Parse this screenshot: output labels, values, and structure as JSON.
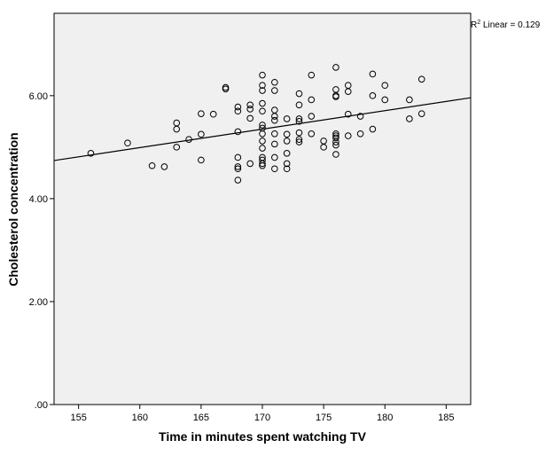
{
  "colors": {
    "plot_background": "#f0f0f0",
    "points": "#000000",
    "fit_line": "#000000",
    "axes": "#000000"
  },
  "chart_data": {
    "type": "scatter",
    "xlabel": "Time in minutes spent watching TV",
    "ylabel": "Cholesterol concentration",
    "xlim": [
      153,
      187
    ],
    "ylim": [
      0,
      7.6
    ],
    "x_ticks": [
      155,
      160,
      165,
      170,
      175,
      180,
      185
    ],
    "x_tick_labels": [
      "155",
      "160",
      "165",
      "170",
      "175",
      "180",
      "185"
    ],
    "y_ticks": [
      0,
      2,
      4,
      6
    ],
    "y_tick_labels": [
      ".00",
      "2.00",
      "4.00",
      "6.00"
    ],
    "grid": false,
    "legend": "none",
    "annotation": {
      "r2_prefix": "R",
      "r2_superscript": "2",
      "r2_text": " Linear = 0.129"
    },
    "fit_line": {
      "x": [
        153,
        187
      ],
      "y": [
        4.74,
        5.96
      ]
    },
    "points": [
      {
        "x": 156,
        "y": 4.88
      },
      {
        "x": 159,
        "y": 5.08
      },
      {
        "x": 161,
        "y": 4.64
      },
      {
        "x": 162,
        "y": 4.62
      },
      {
        "x": 163,
        "y": 5.47
      },
      {
        "x": 163,
        "y": 5.35
      },
      {
        "x": 163,
        "y": 5.0
      },
      {
        "x": 164,
        "y": 5.15
      },
      {
        "x": 165,
        "y": 5.65
      },
      {
        "x": 165,
        "y": 5.25
      },
      {
        "x": 165,
        "y": 4.75
      },
      {
        "x": 166,
        "y": 5.64
      },
      {
        "x": 167,
        "y": 6.16
      },
      {
        "x": 167,
        "y": 6.13
      },
      {
        "x": 168,
        "y": 5.78
      },
      {
        "x": 168,
        "y": 5.7
      },
      {
        "x": 168,
        "y": 5.3
      },
      {
        "x": 168,
        "y": 4.8
      },
      {
        "x": 168,
        "y": 4.62
      },
      {
        "x": 168,
        "y": 4.58
      },
      {
        "x": 168,
        "y": 4.36
      },
      {
        "x": 169,
        "y": 5.82
      },
      {
        "x": 169,
        "y": 5.74
      },
      {
        "x": 169,
        "y": 5.56
      },
      {
        "x": 169,
        "y": 4.68
      },
      {
        "x": 170,
        "y": 6.4
      },
      {
        "x": 170,
        "y": 6.2
      },
      {
        "x": 170,
        "y": 6.1
      },
      {
        "x": 170,
        "y": 5.85
      },
      {
        "x": 170,
        "y": 5.7
      },
      {
        "x": 170,
        "y": 5.43
      },
      {
        "x": 170,
        "y": 5.37
      },
      {
        "x": 170,
        "y": 5.26
      },
      {
        "x": 170,
        "y": 5.12
      },
      {
        "x": 170,
        "y": 4.98
      },
      {
        "x": 170,
        "y": 4.8
      },
      {
        "x": 170,
        "y": 4.75
      },
      {
        "x": 170,
        "y": 4.68
      },
      {
        "x": 170,
        "y": 4.64
      },
      {
        "x": 171,
        "y": 6.26
      },
      {
        "x": 171,
        "y": 6.1
      },
      {
        "x": 171,
        "y": 5.72
      },
      {
        "x": 171,
        "y": 5.6
      },
      {
        "x": 171,
        "y": 5.52
      },
      {
        "x": 171,
        "y": 5.26
      },
      {
        "x": 171,
        "y": 5.06
      },
      {
        "x": 171,
        "y": 4.8
      },
      {
        "x": 171,
        "y": 4.58
      },
      {
        "x": 172,
        "y": 5.55
      },
      {
        "x": 172,
        "y": 5.25
      },
      {
        "x": 172,
        "y": 5.12
      },
      {
        "x": 172,
        "y": 4.88
      },
      {
        "x": 172,
        "y": 4.68
      },
      {
        "x": 172,
        "y": 4.58
      },
      {
        "x": 173,
        "y": 6.04
      },
      {
        "x": 173,
        "y": 5.82
      },
      {
        "x": 173,
        "y": 5.55
      },
      {
        "x": 173,
        "y": 5.5
      },
      {
        "x": 173,
        "y": 5.28
      },
      {
        "x": 173,
        "y": 5.15
      },
      {
        "x": 173,
        "y": 5.1
      },
      {
        "x": 174,
        "y": 6.4
      },
      {
        "x": 174,
        "y": 5.92
      },
      {
        "x": 174,
        "y": 5.6
      },
      {
        "x": 174,
        "y": 5.26
      },
      {
        "x": 175,
        "y": 5.12
      },
      {
        "x": 175,
        "y": 5.0
      },
      {
        "x": 176,
        "y": 6.55
      },
      {
        "x": 176,
        "y": 6.12
      },
      {
        "x": 176,
        "y": 6.0
      },
      {
        "x": 176,
        "y": 5.98
      },
      {
        "x": 176,
        "y": 5.26
      },
      {
        "x": 176,
        "y": 5.22
      },
      {
        "x": 176,
        "y": 5.18
      },
      {
        "x": 176,
        "y": 5.1
      },
      {
        "x": 176,
        "y": 5.04
      },
      {
        "x": 176,
        "y": 4.86
      },
      {
        "x": 177,
        "y": 6.2
      },
      {
        "x": 177,
        "y": 6.08
      },
      {
        "x": 177,
        "y": 5.64
      },
      {
        "x": 177,
        "y": 5.22
      },
      {
        "x": 178,
        "y": 5.6
      },
      {
        "x": 178,
        "y": 5.26
      },
      {
        "x": 179,
        "y": 6.42
      },
      {
        "x": 179,
        "y": 6.0
      },
      {
        "x": 179,
        "y": 5.35
      },
      {
        "x": 180,
        "y": 6.2
      },
      {
        "x": 180,
        "y": 5.92
      },
      {
        "x": 182,
        "y": 5.92
      },
      {
        "x": 182,
        "y": 5.55
      },
      {
        "x": 183,
        "y": 6.32
      },
      {
        "x": 183,
        "y": 5.65
      }
    ]
  }
}
